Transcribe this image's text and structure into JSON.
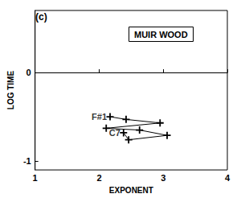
{
  "chart_data": {
    "type": "line",
    "title": "MUIR WOOD",
    "subtitle": "(c)",
    "x_label": "EXPONENT",
    "y_label": "LOG TIME",
    "x": [
      2.17,
      2.42,
      2.95,
      2.11,
      2.63,
      3.06,
      2.46,
      2.38
    ],
    "values": [
      -0.5,
      -0.53,
      -0.57,
      -0.63,
      -0.65,
      -0.71,
      -0.76,
      -0.68
    ],
    "color": "#000000",
    "marker": "plus",
    "line_style": "solid",
    "xlim": [
      1,
      4
    ],
    "xticks": [
      1,
      2,
      3,
      4
    ],
    "ylim": [
      -1.1,
      0.7
    ],
    "yticks": [
      -1,
      0
    ],
    "grid": false,
    "annotations": [
      {
        "text": "F#1",
        "x": 2.17,
        "y": -0.5
      },
      {
        "text": "C7",
        "x": 2.38,
        "y": -0.68
      }
    ]
  }
}
